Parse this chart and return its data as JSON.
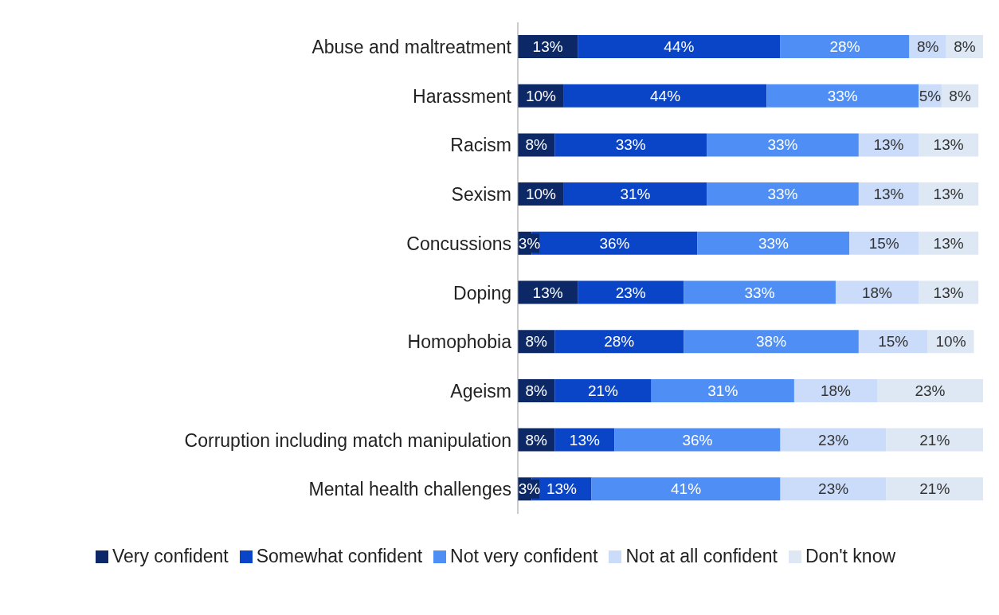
{
  "chart_data": {
    "type": "bar",
    "orientation": "horizontal",
    "stacked": true,
    "legend": "bottom",
    "grid": false,
    "categories": [
      "Abuse and maltreatment",
      "Harassment",
      "Racism",
      "Sexism",
      "Concussions",
      "Doping",
      "Homophobia",
      "Ageism",
      "Corruption including match manipulation",
      "Mental health challenges"
    ],
    "series": [
      {
        "name": "Very confident",
        "color": "#0c2866",
        "values": [
          13,
          10,
          8,
          10,
          3,
          13,
          8,
          8,
          8,
          3
        ],
        "value_labels": [
          "13%",
          "10%",
          "8%",
          "10%",
          "3%",
          "13%",
          "8%",
          "8%",
          "8%",
          "3%"
        ]
      },
      {
        "name": "Somewhat confident",
        "color": "#0a45c8",
        "values": [
          44,
          44,
          33,
          31,
          36,
          23,
          28,
          21,
          13,
          13
        ],
        "value_labels": [
          "44%",
          "44%",
          "33%",
          "31%",
          "36%",
          "23%",
          "28%",
          "21%",
          "13%",
          "13%"
        ]
      },
      {
        "name": "Not very confident",
        "color": "#4f8ff5",
        "values": [
          28,
          33,
          33,
          33,
          33,
          33,
          38,
          31,
          36,
          41
        ],
        "value_labels": [
          "28%",
          "33%",
          "33%",
          "33%",
          "33%",
          "33%",
          "38%",
          "31%",
          "36%",
          "41%"
        ]
      },
      {
        "name": "Not at all confident",
        "color": "#cbdcfa",
        "values": [
          8,
          5,
          13,
          13,
          15,
          18,
          15,
          18,
          23,
          23
        ],
        "value_labels": [
          "8%",
          "5%",
          "13%",
          "13%",
          "15%",
          "18%",
          "15%",
          "18%",
          "23%",
          "23%"
        ]
      },
      {
        "name": "Don't know",
        "color": "#dde8f4",
        "values": [
          8,
          8,
          13,
          13,
          13,
          13,
          10,
          23,
          21,
          21
        ],
        "value_labels": [
          "8%",
          "8%",
          "13%",
          "13%",
          "13%",
          "13%",
          "10%",
          "23%",
          "21%",
          "21%"
        ]
      }
    ]
  }
}
